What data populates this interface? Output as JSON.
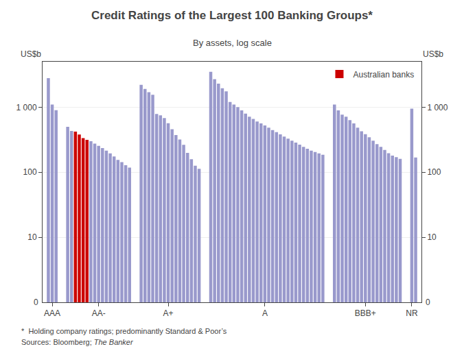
{
  "chart_data": {
    "type": "bar",
    "title": "Credit Ratings of the Largest 100 Banking Groups*",
    "subtitle": "By assets, log scale",
    "ylabel": "US$b",
    "annotations": [
      "0"
    ],
    "footnotes": [
      [
        "*  Holding company ratings; predominantly Standard & Poor’s"
      ],
      [
        "Sources: Bloomberg; ",
        "The Banker"
      ]
    ],
    "categories": [
      null,
      "AAA",
      null,
      null,
      null,
      null,
      null,
      null,
      null,
      null,
      null,
      null,
      null,
      "AA-",
      null,
      null,
      null,
      null,
      null,
      null,
      null,
      null,
      null,
      null,
      null,
      null,
      null,
      null,
      null,
      null,
      null,
      "A+",
      null,
      null,
      null,
      null,
      null,
      null,
      null,
      null,
      null,
      null,
      null,
      null,
      null,
      null,
      null,
      null,
      null,
      null,
      null,
      null,
      null,
      null,
      null,
      null,
      "A",
      null,
      null,
      null,
      null,
      null,
      null,
      null,
      null,
      null,
      null,
      null,
      null,
      null,
      null,
      null,
      null,
      null,
      null,
      null,
      null,
      null,
      null,
      null,
      null,
      null,
      "BBB+",
      null,
      null,
      null,
      null,
      null,
      null,
      null,
      null,
      null,
      null,
      null,
      "NR",
      null
    ],
    "series": [
      {
        "color": "#9999cc",
        "values": [
          2800,
          1100,
          900,
          null,
          null,
          500,
          430,
          null,
          null,
          null,
          null,
          300,
          275,
          255,
          235,
          215,
          195,
          175,
          155,
          143,
          128,
          118,
          null,
          null,
          2200,
          1900,
          1700,
          1550,
          785,
          748,
          680,
          568,
          458,
          373,
          318,
          263,
          198,
          158,
          126,
          113,
          null,
          null,
          3500,
          2700,
          2300,
          1950,
          1750,
          1200,
          1100,
          1000,
          895,
          798,
          713,
          658,
          603,
          563,
          523,
          485,
          445,
          413,
          383,
          353,
          328,
          305,
          285,
          265,
          245,
          230,
          215,
          205,
          195,
          185,
          null,
          null,
          1100,
          893,
          768,
          713,
          633,
          563,
          485,
          425,
          385,
          345,
          305,
          270,
          245,
          220,
          196,
          180,
          170,
          160,
          null,
          null,
          948,
          168
        ]
      },
      {
        "name": "Australian banks",
        "color": "#cc0000",
        "values": [
          null,
          null,
          null,
          null,
          null,
          null,
          null,
          420,
          380,
          335,
          315,
          null,
          null,
          null,
          null,
          null,
          null,
          null,
          null,
          null,
          null,
          null,
          null,
          null,
          null,
          null,
          null,
          null,
          null,
          null,
          null,
          null,
          null,
          null,
          null,
          null,
          null,
          null,
          null,
          null,
          null,
          null,
          null,
          null,
          null,
          null,
          null,
          null,
          null,
          null,
          null,
          null,
          null,
          null,
          null,
          null,
          null,
          null,
          null,
          null,
          null,
          null,
          null,
          null,
          null,
          null,
          null,
          null,
          null,
          null,
          null,
          null,
          null,
          null,
          null,
          null,
          null,
          null,
          null,
          null,
          null,
          null,
          null,
          null,
          null,
          null,
          null,
          null,
          null,
          null,
          null,
          null,
          null,
          null,
          null,
          null
        ]
      }
    ],
    "log": "y",
    "ylim": [
      1,
      5000
    ],
    "yticks": [
      10,
      100,
      {
        "value": 1000,
        "label": "1 000"
      }
    ],
    "y2lim": [
      1,
      5000
    ],
    "y2ticks": [
      10,
      100,
      {
        "value": 1000,
        "label": "1 000"
      }
    ],
    "grid": true,
    "legend": "upper right"
  }
}
